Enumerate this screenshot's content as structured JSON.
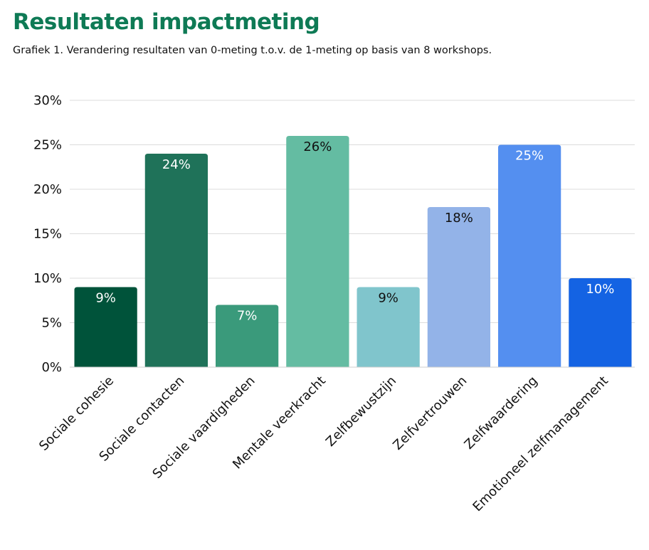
{
  "page": {
    "title": "Resultaten impactmeting",
    "subtitle": "Grafiek 1. Verandering resultaten van 0-meting t.o.v. de 1-meting op basis van 8 workshops."
  },
  "chart_data": {
    "type": "bar",
    "categories": [
      "Sociale cohesie",
      "Sociale contacten",
      "Sociale vaardigheden",
      "Mentale veerkracht",
      "Zelfbewustzijn",
      "Zelfvertrouwen",
      "Zelfwaardering",
      "Emotioneel zelfmanagement"
    ],
    "values": [
      9,
      24,
      7,
      26,
      9,
      18,
      25,
      10
    ],
    "value_labels": [
      "9%",
      "24%",
      "7%",
      "26%",
      "9%",
      "18%",
      "25%",
      "10%"
    ],
    "colors": [
      "#00533a",
      "#1f7259",
      "#3a9a7b",
      "#64bca2",
      "#80c5cc",
      "#93b3e8",
      "#548ff0",
      "#1463e3"
    ],
    "label_colors": [
      "#ffffff",
      "#ffffff",
      "#ffffff",
      "#111111",
      "#111111",
      "#111111",
      "#ffffff",
      "#ffffff"
    ],
    "ylim": [
      0,
      30
    ],
    "yticks": [
      0,
      5,
      10,
      15,
      20,
      25,
      30
    ],
    "ytick_labels": [
      "0%",
      "5%",
      "10%",
      "15%",
      "20%",
      "25%",
      "30%"
    ],
    "grid": true,
    "legend": "none",
    "xlabel": "",
    "ylabel": ""
  }
}
